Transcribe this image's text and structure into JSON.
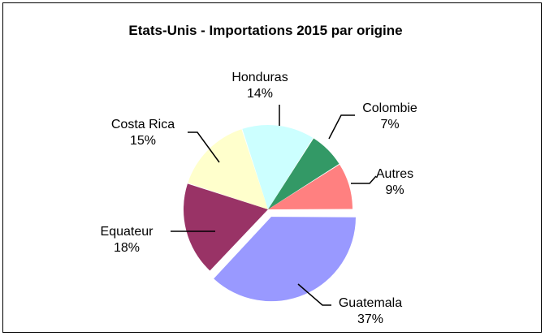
{
  "chart_data": {
    "type": "pie",
    "title": "Etats-Unis - Importations 2015 par origine",
    "slices": [
      {
        "label": "Guatemala",
        "percent_label": "37%",
        "value": 37,
        "color": "#9999ff",
        "exploded": true
      },
      {
        "label": "Equateur",
        "percent_label": "18%",
        "value": 18,
        "color": "#993366",
        "exploded": false
      },
      {
        "label": "Costa Rica",
        "percent_label": "15%",
        "value": 15,
        "color": "#ffffcc",
        "exploded": false
      },
      {
        "label": "Honduras",
        "percent_label": "14%",
        "value": 14,
        "color": "#ccffff",
        "exploded": false
      },
      {
        "label": "Colombie",
        "percent_label": "7%",
        "value": 7,
        "color": "#339966",
        "exploded": false
      },
      {
        "label": "Autres",
        "percent_label": "9%",
        "value": 9,
        "color": "#ff8080",
        "exploded": false
      }
    ],
    "legend": "none"
  }
}
